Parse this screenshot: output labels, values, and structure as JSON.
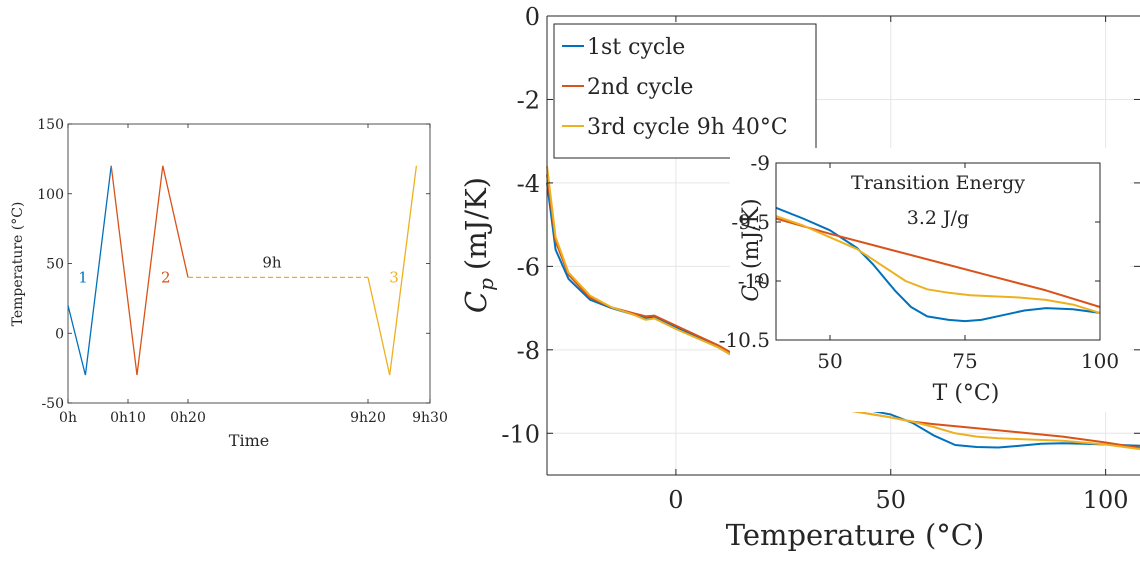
{
  "colors": {
    "c1": "#0072BD",
    "c2": "#D95319",
    "c3": "#EDB120",
    "axis": "#262626",
    "grid": "#e6e6e6"
  },
  "chart_data": [
    {
      "type": "line",
      "xlabel": "Time",
      "ylabel": "Temperature (°C)",
      "ylim": [
        -50,
        150
      ],
      "yticks": [
        -50,
        0,
        50,
        100,
        150
      ],
      "xticks": [
        {
          "t": 0,
          "label": "0h"
        },
        {
          "t": 10,
          "label": "0h10"
        },
        {
          "t": 20,
          "label": "0h20"
        },
        {
          "t": 560,
          "label": "9h20"
        },
        {
          "t": 570,
          "label": "9h30"
        }
      ],
      "annotations": [
        {
          "text": "1",
          "series": 0
        },
        {
          "text": "2",
          "series": 1
        },
        {
          "text": "9h",
          "series": 2
        },
        {
          "text": "3",
          "series": 2
        }
      ],
      "grid": false,
      "series": [
        {
          "color_key": "c1",
          "dashed": false,
          "x_min": [
            0,
            2.9,
            7.2
          ],
          "y": [
            20,
            -30,
            120
          ]
        },
        {
          "color_key": "c2",
          "dashed": false,
          "x_min": [
            7.2,
            11.5,
            15.8,
            20
          ],
          "y": [
            120,
            -30,
            120,
            40
          ]
        },
        {
          "color_key": "c3",
          "dashed": true,
          "x_min": [
            20,
            560
          ],
          "y": [
            40,
            40
          ]
        },
        {
          "color_key": "c3",
          "dashed": false,
          "x_min": [
            560,
            563.5,
            567.8
          ],
          "y": [
            40,
            -30,
            120
          ]
        }
      ]
    },
    {
      "type": "line",
      "xlabel": "Temperature (°C)",
      "ylabel_main": "C",
      "ylabel_sub": "p",
      "ylabel_unit": "(mJ/K)",
      "xlim": [
        -30,
        108
      ],
      "ylim": [
        -11,
        0
      ],
      "xticks": [
        0,
        50,
        100
      ],
      "yticks": [
        0,
        -2,
        -4,
        -6,
        -8,
        -10
      ],
      "grid": true,
      "legend": "top-left",
      "series": [
        {
          "name": "1st cycle",
          "color_key": "c1",
          "x": [
            -30,
            -28,
            -25,
            -20,
            -15,
            -10,
            -7,
            -5,
            0,
            10,
            20,
            30,
            40,
            50,
            55,
            60,
            65,
            70,
            75,
            80,
            85,
            90,
            95,
            100,
            108
          ],
          "y": [
            -4.0,
            -5.6,
            -6.3,
            -6.8,
            -7.0,
            -7.15,
            -7.25,
            -7.2,
            -7.45,
            -7.95,
            -8.55,
            -9.15,
            -9.35,
            -9.55,
            -9.75,
            -10.05,
            -10.28,
            -10.33,
            -10.34,
            -10.3,
            -10.25,
            -10.24,
            -10.25,
            -10.27,
            -10.3
          ]
        },
        {
          "name": "2nd cycle",
          "color_key": "c2",
          "x": [
            -30,
            -28,
            -25,
            -20,
            -15,
            -10,
            -7,
            -5,
            0,
            10,
            20,
            30,
            40,
            50,
            55,
            60,
            70,
            80,
            90,
            100,
            108
          ],
          "y": [
            -3.8,
            -5.4,
            -6.2,
            -6.75,
            -6.98,
            -7.12,
            -7.2,
            -7.18,
            -7.42,
            -7.9,
            -8.5,
            -9.18,
            -9.45,
            -9.62,
            -9.72,
            -9.78,
            -9.88,
            -9.98,
            -10.08,
            -10.22,
            -10.35
          ]
        },
        {
          "name": "3rd cycle 9h 40°C",
          "color_key": "c3",
          "x": [
            -30,
            -28,
            -25,
            -20,
            -15,
            -10,
            -7,
            -5,
            0,
            10,
            20,
            30,
            40,
            50,
            55,
            60,
            65,
            70,
            75,
            80,
            90,
            100,
            108
          ],
          "y": [
            -3.6,
            -5.3,
            -6.15,
            -6.7,
            -6.98,
            -7.15,
            -7.28,
            -7.25,
            -7.5,
            -7.95,
            -8.55,
            -9.2,
            -9.45,
            -9.62,
            -9.72,
            -9.85,
            -10.0,
            -10.08,
            -10.12,
            -10.14,
            -10.18,
            -10.27,
            -10.38
          ]
        }
      ]
    },
    {
      "type": "line",
      "inset": true,
      "xlabel": "T (°C)",
      "ylabel_main": "C",
      "ylabel_sub": "p",
      "ylabel_unit": "(mJ/K)",
      "xlim": [
        40,
        100
      ],
      "ylim": [
        -10.5,
        -9
      ],
      "xticks": [
        50,
        75,
        100
      ],
      "yticks": [
        -9,
        -9.5,
        -10,
        -10.5
      ],
      "grid": false,
      "annotation_title": "Transition Energy",
      "annotation_value": "3.2 J/g",
      "series": [
        {
          "color_key": "c1",
          "x": [
            40,
            45,
            50,
            55,
            58,
            62,
            65,
            68,
            72,
            75,
            78,
            82,
            86,
            90,
            95,
            100
          ],
          "y": [
            -9.38,
            -9.47,
            -9.57,
            -9.72,
            -9.86,
            -10.08,
            -10.22,
            -10.3,
            -10.33,
            -10.34,
            -10.33,
            -10.29,
            -10.25,
            -10.23,
            -10.24,
            -10.27
          ]
        },
        {
          "color_key": "c2",
          "x": [
            40,
            50,
            60,
            70,
            80,
            90,
            100
          ],
          "y": [
            -9.47,
            -9.6,
            -9.72,
            -9.84,
            -9.96,
            -10.08,
            -10.22
          ]
        },
        {
          "color_key": "c3",
          "x": [
            40,
            45,
            50,
            55,
            60,
            64,
            68,
            72,
            76,
            80,
            85,
            90,
            95,
            100
          ],
          "y": [
            -9.45,
            -9.53,
            -9.63,
            -9.73,
            -9.88,
            -10.0,
            -10.07,
            -10.1,
            -10.12,
            -10.13,
            -10.14,
            -10.16,
            -10.2,
            -10.27
          ]
        }
      ]
    }
  ]
}
